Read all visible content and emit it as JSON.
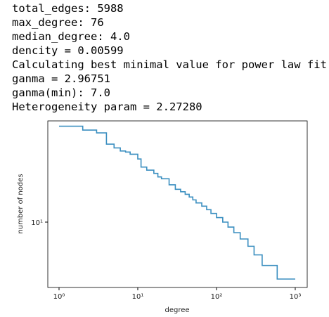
{
  "output_lines": [
    "total_edges: 5988",
    "max_degree: 76",
    "median_degree: 4.0",
    "dencity = 0.00599",
    "Calculating best minimal value for power law fit",
    "ganma = 2.96751",
    "ganma(min): 7.0",
    "Heterogeneity param = 2.27280"
  ],
  "chart_data": {
    "type": "line",
    "xlabel": "degree",
    "ylabel": "number of nodes",
    "x": [
      1,
      2,
      3,
      4,
      5,
      6,
      7,
      8,
      10,
      11,
      13,
      16,
      18,
      20,
      25,
      30,
      35,
      40,
      45,
      50,
      55,
      65,
      75,
      85,
      100,
      120,
      140,
      166,
      200,
      251,
      300,
      380,
      590,
      1000
    ],
    "values": [
      76,
      70,
      66,
      52,
      48,
      45,
      44,
      42,
      38,
      32,
      30,
      28,
      26,
      25,
      22,
      20,
      19,
      18,
      17,
      16,
      15,
      14,
      13,
      12,
      11,
      10,
      9,
      8,
      7,
      6,
      5,
      4,
      3,
      3
    ],
    "drawstyle": "steps-post",
    "color": "#3b8fc0",
    "xscale": "log",
    "yscale": "log",
    "xlim": [
      0.72,
      1419
    ],
    "ylim": [
      2.51,
      85
    ],
    "xticks": [
      {
        "value": 1,
        "label": "10⁰"
      },
      {
        "value": 10,
        "label": "10¹"
      },
      {
        "value": 100,
        "label": "10²"
      },
      {
        "value": 1000,
        "label": "10³"
      }
    ],
    "yticks": [
      {
        "value": 10,
        "label": "10¹"
      }
    ]
  }
}
